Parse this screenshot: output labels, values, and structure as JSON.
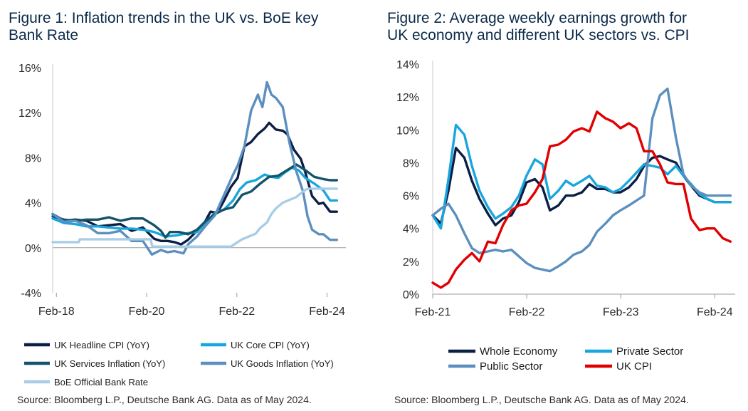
{
  "chart_data": [
    {
      "type": "line",
      "title_lines": [
        "Figure 1: Inflation trends in the UK vs. BoE key",
        "Bank Rate"
      ],
      "ylim": [
        -4,
        16
      ],
      "yticks": [
        -4,
        0,
        4,
        8,
        12,
        16
      ],
      "ytick_labels": [
        "-4%",
        "0%",
        "4%",
        "8%",
        "12%",
        "16%"
      ],
      "xlim": [
        2018.0,
        2024.5
      ],
      "xticks": [
        2018.083,
        2020.083,
        2022.083,
        2024.083
      ],
      "xtick_labels": [
        "Feb-18",
        "Feb-20",
        "Feb-22",
        "Feb-24"
      ],
      "source": "Source: Bloomberg L.P., Deutsche Bank AG. Data as of May 2024.",
      "series": [
        {
          "name": "UK Headline CPI (YoY)",
          "color": "#0b1f45",
          "x": [
            2018.0,
            2018.25,
            2018.5,
            2018.75,
            2019.0,
            2019.25,
            2019.5,
            2019.75,
            2020.0,
            2020.25,
            2020.4,
            2020.55,
            2020.7,
            2020.85,
            2021.0,
            2021.2,
            2021.35,
            2021.5,
            2021.65,
            2021.8,
            2021.95,
            2022.1,
            2022.25,
            2022.4,
            2022.55,
            2022.7,
            2022.8,
            2022.95,
            2023.1,
            2023.2,
            2023.35,
            2023.5,
            2023.6,
            2023.75,
            2023.9,
            2024.0,
            2024.15,
            2024.3
          ],
          "y": [
            3.0,
            2.4,
            2.5,
            2.4,
            1.9,
            2.0,
            2.1,
            1.5,
            1.8,
            0.8,
            0.6,
            0.6,
            0.5,
            0.3,
            0.7,
            1.5,
            2.1,
            3.2,
            3.1,
            4.2,
            5.4,
            6.2,
            9.0,
            9.4,
            10.1,
            10.6,
            11.1,
            10.5,
            10.4,
            10.1,
            8.7,
            7.9,
            6.7,
            4.6,
            3.9,
            4.0,
            3.2,
            3.2
          ]
        },
        {
          "name": "UK Core CPI (YoY)",
          "color": "#19a6dd",
          "x": [
            2018.0,
            2018.25,
            2018.5,
            2018.75,
            2019.0,
            2019.25,
            2019.5,
            2019.75,
            2020.0,
            2020.25,
            2020.5,
            2020.75,
            2021.0,
            2021.2,
            2021.4,
            2021.6,
            2021.8,
            2022.0,
            2022.15,
            2022.3,
            2022.5,
            2022.7,
            2022.85,
            2023.0,
            2023.15,
            2023.3,
            2023.45,
            2023.6,
            2023.8,
            2024.0,
            2024.15,
            2024.3
          ],
          "y": [
            2.6,
            2.2,
            2.1,
            1.9,
            1.9,
            1.8,
            1.7,
            1.7,
            1.6,
            1.4,
            1.0,
            1.1,
            1.3,
            1.4,
            2.3,
            3.1,
            3.4,
            4.2,
            5.2,
            5.8,
            6.0,
            6.5,
            6.3,
            6.2,
            6.7,
            7.1,
            6.9,
            6.2,
            5.7,
            5.1,
            4.2,
            4.2
          ]
        },
        {
          "name": "UK Services Inflation (YoY)",
          "color": "#14536a",
          "x": [
            2018.0,
            2018.25,
            2018.5,
            2018.75,
            2019.0,
            2019.25,
            2019.5,
            2019.75,
            2020.0,
            2020.25,
            2020.4,
            2020.5,
            2020.6,
            2020.8,
            2021.0,
            2021.2,
            2021.4,
            2021.6,
            2021.8,
            2022.0,
            2022.2,
            2022.4,
            2022.6,
            2022.8,
            2023.0,
            2023.2,
            2023.4,
            2023.6,
            2023.8,
            2024.0,
            2024.15,
            2024.3
          ],
          "y": [
            2.8,
            2.5,
            2.4,
            2.5,
            2.5,
            2.7,
            2.4,
            2.6,
            2.6,
            2.0,
            1.5,
            0.9,
            1.4,
            1.4,
            1.2,
            1.6,
            2.4,
            3.0,
            3.4,
            3.6,
            4.7,
            5.0,
            5.7,
            6.3,
            6.4,
            6.9,
            7.4,
            6.9,
            6.3,
            6.1,
            6.0,
            6.0
          ]
        },
        {
          "name": "UK Goods Inflation (YoY)",
          "color": "#5b8fbf",
          "x": [
            2018.0,
            2018.25,
            2018.5,
            2018.75,
            2019.0,
            2019.25,
            2019.5,
            2019.75,
            2020.0,
            2020.2,
            2020.4,
            2020.55,
            2020.7,
            2020.9,
            2021.0,
            2021.2,
            2021.4,
            2021.6,
            2021.8,
            2022.0,
            2022.1,
            2022.25,
            2022.4,
            2022.55,
            2022.65,
            2022.75,
            2022.85,
            2022.95,
            2023.1,
            2023.25,
            2023.4,
            2023.55,
            2023.65,
            2023.75,
            2023.9,
            2024.0,
            2024.15,
            2024.3
          ],
          "y": [
            3.0,
            2.3,
            2.4,
            2.0,
            1.3,
            1.3,
            1.5,
            0.6,
            0.6,
            -0.6,
            -0.2,
            -0.4,
            -0.3,
            -0.5,
            0.3,
            1.0,
            2.0,
            2.9,
            4.7,
            6.5,
            7.3,
            9.0,
            12.2,
            13.6,
            12.5,
            14.7,
            13.6,
            13.3,
            12.5,
            9.3,
            6.8,
            5.0,
            2.8,
            1.6,
            1.2,
            1.2,
            0.7,
            0.7
          ]
        },
        {
          "name": "BoE Official Bank Rate",
          "color": "#a9cde6",
          "x": [
            2018.0,
            2018.58,
            2018.6,
            2020.17,
            2020.2,
            2020.22,
            2021.95,
            2022.1,
            2022.2,
            2022.35,
            2022.5,
            2022.6,
            2022.75,
            2022.85,
            2022.95,
            2023.1,
            2023.25,
            2023.4,
            2023.55,
            2023.65,
            2024.3
          ],
          "y": [
            0.5,
            0.5,
            0.75,
            0.75,
            0.25,
            0.1,
            0.1,
            0.5,
            0.75,
            1.0,
            1.25,
            1.75,
            2.25,
            3.0,
            3.5,
            4.0,
            4.25,
            4.5,
            5.0,
            5.25,
            5.25
          ]
        }
      ]
    },
    {
      "type": "line",
      "title_lines": [
        "Figure 2: Average weekly earnings growth for",
        "UK economy and different UK sectors vs. CPI"
      ],
      "ylim": [
        0,
        14
      ],
      "yticks": [
        0,
        2,
        4,
        6,
        8,
        10,
        12,
        14
      ],
      "ytick_labels": [
        "0%",
        "2%",
        "4%",
        "6%",
        "8%",
        "10%",
        "12%",
        "14%"
      ],
      "xlim": [
        2021.083,
        2024.3
      ],
      "xticks": [
        2021.083,
        2022.083,
        2023.083,
        2024.083
      ],
      "xtick_labels": [
        "Feb-21",
        "Feb-22",
        "Feb-23",
        "Feb-24"
      ],
      "source": "Source: Bloomberg L.P., Deutsche Bank AG. Data as of May 2024.",
      "series": [
        {
          "name": "Whole Economy",
          "color": "#0b1f45",
          "x": [
            2021.083,
            2021.17,
            2021.25,
            2021.33,
            2021.42,
            2021.5,
            2021.58,
            2021.67,
            2021.75,
            2021.83,
            2021.92,
            2022.0,
            2022.08,
            2022.17,
            2022.25,
            2022.33,
            2022.42,
            2022.5,
            2022.58,
            2022.67,
            2022.75,
            2022.83,
            2022.92,
            2023.0,
            2023.08,
            2023.17,
            2023.25,
            2023.33,
            2023.42,
            2023.5,
            2023.58,
            2023.67,
            2023.75,
            2023.83,
            2023.92,
            2024.0,
            2024.08,
            2024.17,
            2024.25
          ],
          "y": [
            4.8,
            4.3,
            6.3,
            8.9,
            8.3,
            6.9,
            5.8,
            4.9,
            4.2,
            4.6,
            4.8,
            5.6,
            6.8,
            7.0,
            6.5,
            5.1,
            5.4,
            6.0,
            6.0,
            6.2,
            6.7,
            6.4,
            6.4,
            6.2,
            6.2,
            6.5,
            7.0,
            7.8,
            8.3,
            8.4,
            8.2,
            8.0,
            7.2,
            6.6,
            6.0,
            5.8,
            5.6,
            5.6,
            5.6
          ]
        },
        {
          "name": "Private Sector",
          "color": "#19a6dd",
          "x": [
            2021.083,
            2021.17,
            2021.25,
            2021.33,
            2021.42,
            2021.5,
            2021.58,
            2021.67,
            2021.75,
            2021.83,
            2021.92,
            2022.0,
            2022.08,
            2022.17,
            2022.25,
            2022.33,
            2022.42,
            2022.5,
            2022.58,
            2022.67,
            2022.75,
            2022.83,
            2022.92,
            2023.0,
            2023.08,
            2023.17,
            2023.25,
            2023.33,
            2023.42,
            2023.5,
            2023.58,
            2023.67,
            2023.75,
            2023.83,
            2023.92,
            2024.0,
            2024.08,
            2024.17,
            2024.25
          ],
          "y": [
            4.8,
            4.0,
            7.0,
            10.3,
            9.7,
            7.8,
            6.3,
            5.3,
            4.6,
            4.9,
            5.3,
            6.0,
            7.2,
            8.2,
            7.9,
            5.8,
            6.3,
            6.9,
            6.6,
            6.9,
            7.2,
            6.6,
            6.5,
            6.2,
            6.4,
            6.9,
            7.4,
            7.9,
            7.8,
            7.7,
            7.3,
            7.8,
            7.2,
            6.7,
            6.1,
            5.8,
            5.6,
            5.6,
            5.6
          ]
        },
        {
          "name": "Public Sector",
          "color": "#5b8fbf",
          "x": [
            2021.083,
            2021.17,
            2021.25,
            2021.33,
            2021.42,
            2021.5,
            2021.58,
            2021.67,
            2021.75,
            2021.83,
            2021.92,
            2022.0,
            2022.08,
            2022.17,
            2022.25,
            2022.33,
            2022.42,
            2022.5,
            2022.58,
            2022.67,
            2022.75,
            2022.83,
            2022.92,
            2023.0,
            2023.08,
            2023.17,
            2023.25,
            2023.33,
            2023.42,
            2023.5,
            2023.58,
            2023.67,
            2023.75,
            2023.83,
            2023.92,
            2024.0,
            2024.08,
            2024.17,
            2024.25
          ],
          "y": [
            4.8,
            5.2,
            5.5,
            4.8,
            3.7,
            2.8,
            2.5,
            2.6,
            2.7,
            2.6,
            2.7,
            2.3,
            1.9,
            1.6,
            1.5,
            1.4,
            1.7,
            2.0,
            2.4,
            2.6,
            3.0,
            3.8,
            4.3,
            4.8,
            5.1,
            5.4,
            5.7,
            6.0,
            10.7,
            12.1,
            12.5,
            9.5,
            7.3,
            6.6,
            6.2,
            6.0,
            6.0,
            6.0,
            6.0
          ]
        },
        {
          "name": "UK CPI",
          "color": "#e00000",
          "x": [
            2021.083,
            2021.17,
            2021.25,
            2021.33,
            2021.42,
            2021.5,
            2021.58,
            2021.67,
            2021.75,
            2021.83,
            2021.92,
            2022.0,
            2022.08,
            2022.17,
            2022.25,
            2022.33,
            2022.42,
            2022.5,
            2022.58,
            2022.67,
            2022.75,
            2022.83,
            2022.92,
            2023.0,
            2023.08,
            2023.17,
            2023.25,
            2023.33,
            2023.42,
            2023.5,
            2023.58,
            2023.67,
            2023.75,
            2023.83,
            2023.92,
            2024.0,
            2024.08,
            2024.17,
            2024.25
          ],
          "y": [
            0.7,
            0.4,
            0.7,
            1.5,
            2.1,
            2.5,
            2.0,
            3.2,
            3.1,
            4.2,
            5.1,
            5.4,
            5.5,
            6.2,
            7.0,
            9.0,
            9.1,
            9.4,
            9.9,
            10.1,
            9.9,
            11.1,
            10.7,
            10.5,
            10.1,
            10.4,
            10.1,
            8.7,
            8.7,
            7.9,
            6.8,
            6.7,
            6.7,
            4.6,
            3.9,
            4.0,
            4.0,
            3.4,
            3.2
          ]
        }
      ]
    }
  ]
}
